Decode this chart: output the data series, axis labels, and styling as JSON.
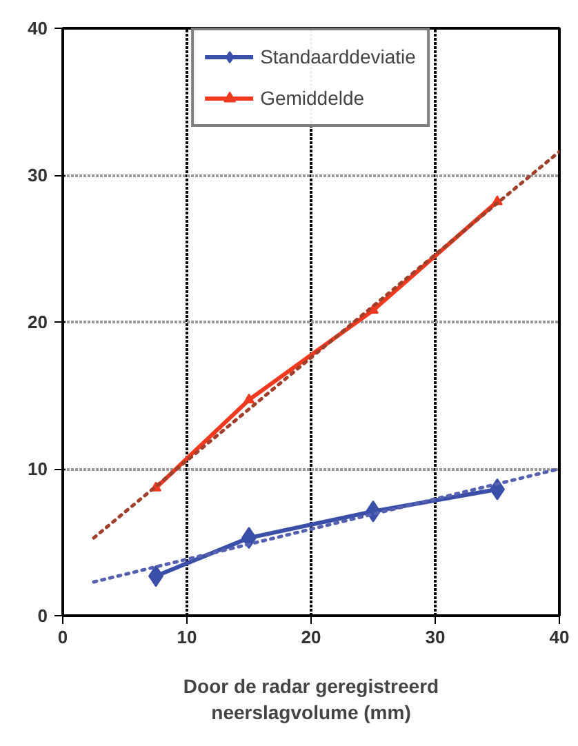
{
  "chart_data": {
    "type": "line",
    "xlabel": "Door de radar geregistreerd\nneerslagvolume (mm)",
    "xlim": [
      0,
      40
    ],
    "ylim": [
      0,
      40
    ],
    "xticks": [
      0,
      10,
      20,
      30,
      40
    ],
    "yticks": [
      0,
      10,
      20,
      30,
      40
    ],
    "grid": true,
    "legend": "top",
    "line_style": "solid",
    "series": [
      {
        "name": "Standaarddeviatie",
        "color": "#3a4fa8",
        "marker": "diamond",
        "x": [
          7.5,
          15,
          25,
          35
        ],
        "values": [
          2.7,
          5.3,
          7.1,
          8.6
        ]
      },
      {
        "name": "Gemiddelde",
        "color": "#f03a20",
        "marker": "triangle",
        "x": [
          7.5,
          15,
          25,
          35
        ],
        "values": [
          8.7,
          14.7,
          20.8,
          28.2
        ]
      },
      {
        "color": "#5560b0",
        "marker": "none",
        "line_style": "dotted",
        "x": [
          2.5,
          40
        ],
        "values": [
          2.3,
          10
        ]
      },
      {
        "color": "#a0402a",
        "marker": "none",
        "line_style": "dotted",
        "x": [
          2.5,
          40
        ],
        "values": [
          5.3,
          31.6
        ]
      }
    ]
  }
}
